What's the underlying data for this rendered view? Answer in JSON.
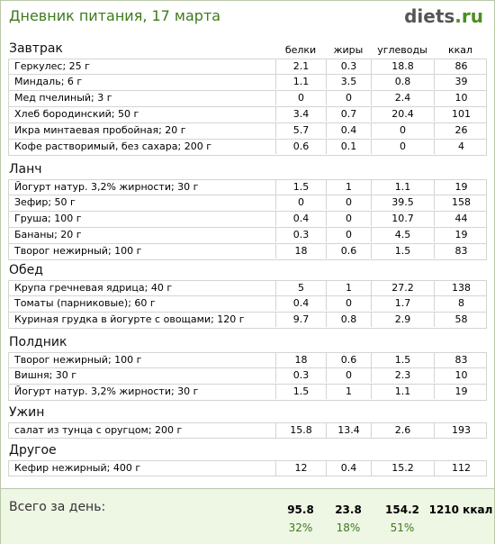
{
  "header": {
    "title": "Дневник питания, 17 марта",
    "logo_name": "diets",
    "logo_tld": ".ru"
  },
  "columns": {
    "protein": "белки",
    "fat": "жиры",
    "carbs": "углеводы",
    "kcal": "ккал"
  },
  "sections": [
    {
      "title": "Завтрак",
      "rows": [
        {
          "name": "Геркулес; 25 г",
          "protein": "2.1",
          "fat": "0.3",
          "carbs": "18.8",
          "kcal": "86"
        },
        {
          "name": "Миндаль; 6 г",
          "protein": "1.1",
          "fat": "3.5",
          "carbs": "0.8",
          "kcal": "39"
        },
        {
          "name": "Мед пчелиный; 3 г",
          "protein": "0",
          "fat": "0",
          "carbs": "2.4",
          "kcal": "10"
        },
        {
          "name": "Хлеб бородинский; 50 г",
          "protein": "3.4",
          "fat": "0.7",
          "carbs": "20.4",
          "kcal": "101"
        },
        {
          "name": "Икра минтаевая пробойная; 20 г",
          "protein": "5.7",
          "fat": "0.4",
          "carbs": "0",
          "kcal": "26"
        },
        {
          "name": "Кофе растворимый, без сахара; 200 г",
          "protein": "0.6",
          "fat": "0.1",
          "carbs": "0",
          "kcal": "4"
        }
      ]
    },
    {
      "title": "Ланч",
      "rows": [
        {
          "name": "Йогурт натур. 3,2% жирности; 30 г",
          "protein": "1.5",
          "fat": "1",
          "carbs": "1.1",
          "kcal": "19"
        },
        {
          "name": "Зефир; 50 г",
          "protein": "0",
          "fat": "0",
          "carbs": "39.5",
          "kcal": "158"
        },
        {
          "name": "Груша; 100 г",
          "protein": "0.4",
          "fat": "0",
          "carbs": "10.7",
          "kcal": "44"
        },
        {
          "name": "Бананы; 20 г",
          "protein": "0.3",
          "fat": "0",
          "carbs": "4.5",
          "kcal": "19"
        },
        {
          "name": "Творог нежирный; 100 г",
          "protein": "18",
          "fat": "0.6",
          "carbs": "1.5",
          "kcal": "83"
        }
      ]
    },
    {
      "title": "Обед",
      "rows": [
        {
          "name": "Крупа гречневая ядрица; 40 г",
          "protein": "5",
          "fat": "1",
          "carbs": "27.2",
          "kcal": "138"
        },
        {
          "name": "Томаты (парниковые); 60 г",
          "protein": "0.4",
          "fat": "0",
          "carbs": "1.7",
          "kcal": "8"
        },
        {
          "name": "Куриная грудка в йогурте с овощами; 120 г",
          "protein": "9.7",
          "fat": "0.8",
          "carbs": "2.9",
          "kcal": "58"
        }
      ]
    },
    {
      "title": "Полдник",
      "rows": [
        {
          "name": "Творог нежирный; 100 г",
          "protein": "18",
          "fat": "0.6",
          "carbs": "1.5",
          "kcal": "83"
        },
        {
          "name": "Вишня; 30 г",
          "protein": "0.3",
          "fat": "0",
          "carbs": "2.3",
          "kcal": "10"
        },
        {
          "name": "Йогурт натур. 3,2% жирности; 30 г",
          "protein": "1.5",
          "fat": "1",
          "carbs": "1.1",
          "kcal": "19"
        }
      ]
    },
    {
      "title": "Ужин",
      "rows": [
        {
          "name": "салат из тунца с оругцом; 200 г",
          "protein": "15.8",
          "fat": "13.4",
          "carbs": "2.6",
          "kcal": "193"
        }
      ]
    },
    {
      "title": "Другое",
      "rows": [
        {
          "name": "Кефир нежирный; 400 г",
          "protein": "12",
          "fat": "0.4",
          "carbs": "15.2",
          "kcal": "112"
        }
      ]
    }
  ],
  "totals": {
    "label": "Всего за день:",
    "protein": "95.8",
    "fat": "23.8",
    "carbs": "154.2",
    "kcal": "1210 ккал",
    "protein_pct": "32%",
    "fat_pct": "18%",
    "carbs_pct": "51%"
  }
}
